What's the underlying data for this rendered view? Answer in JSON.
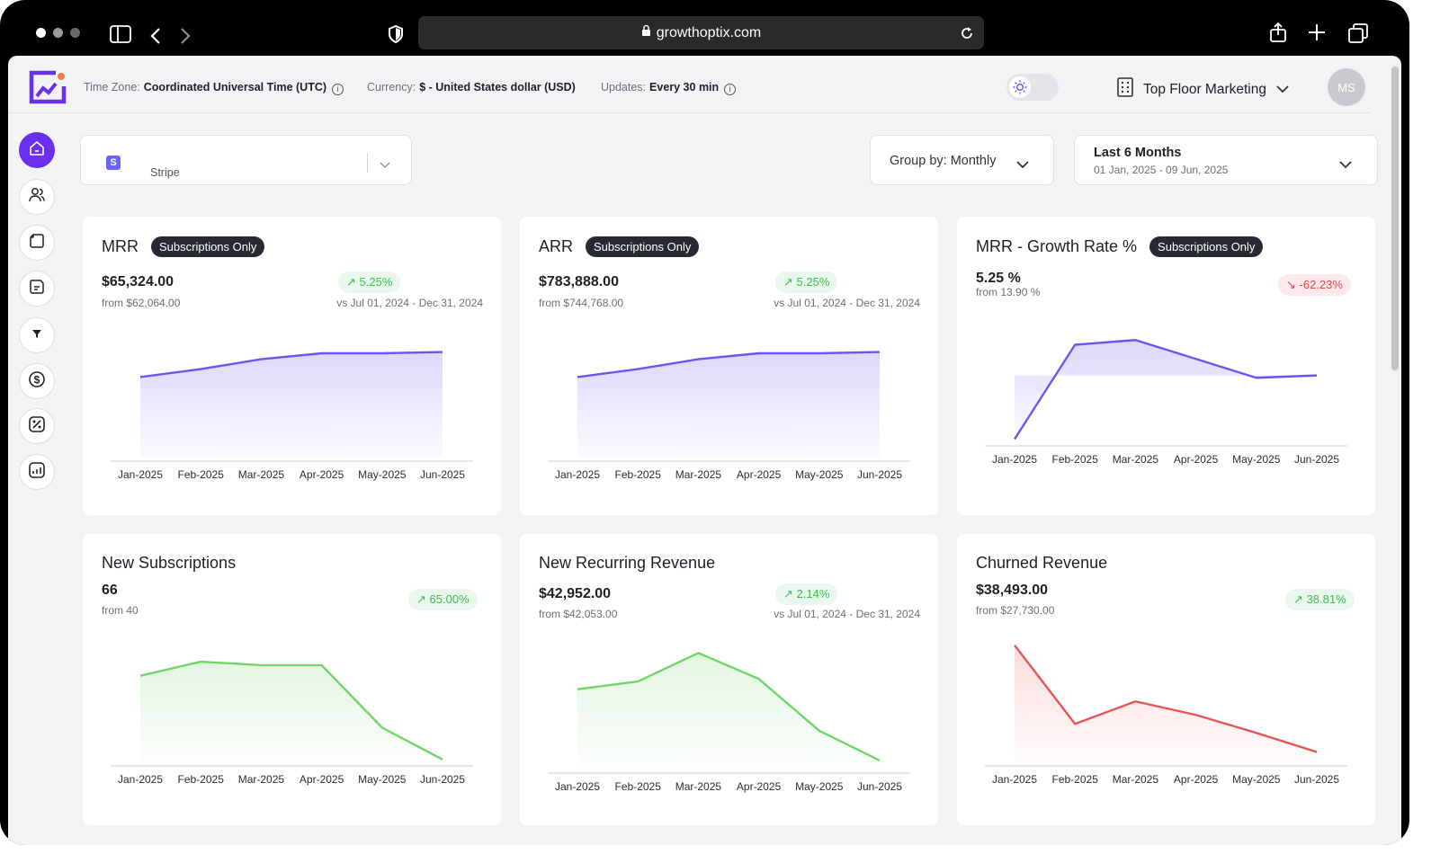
{
  "browser": {
    "url": "growthoptix.com",
    "icons": [
      "sidebar-icon",
      "back-icon",
      "forward-icon",
      "shield-icon",
      "lock-icon",
      "reload-icon",
      "share-icon",
      "plus-icon",
      "tabs-icon"
    ],
    "traffic_colors": [
      "#ffffff",
      "#9a9a9a",
      "#6a6a6a"
    ]
  },
  "topbar": {
    "timezone_label": "Time Zone:",
    "timezone_value": "Coordinated Universal Time (UTC)",
    "currency_label": "Currency:",
    "currency_value": "$ - United States dollar (USD)",
    "updates_label": "Updates:",
    "updates_value": "Every 30 min",
    "company": "Top Floor Marketing",
    "avatar_initials": "MS"
  },
  "sidebar": {
    "items": [
      "home-icon",
      "users-icon",
      "document-icon",
      "report-icon",
      "funnel-icon",
      "dollar-icon",
      "discount-icon",
      "analytics-icon"
    ],
    "active_index": 0
  },
  "filters": {
    "source_icon_letter": "S",
    "source": "Stripe",
    "group_by": "Group by: Monthly",
    "date_range_title": "Last 6 Months",
    "date_range_sub": "01 Jan, 2025 - 09 Jun, 2025"
  },
  "colors": {
    "accent": "#6b2ff0",
    "mrr_line": "#6d55f2",
    "green_line": "#6fd76a",
    "red_line": "#e85454"
  },
  "cards": [
    {
      "title": "MRR",
      "pill": "Subscriptions Only",
      "value": "$65,324.00",
      "from": "from $62,064.00",
      "badge": "5.25%",
      "trend": "up",
      "vs": "vs Jul 01, 2024 - Dec 31, 2024"
    },
    {
      "title": "ARR",
      "pill": "Subscriptions Only",
      "value": "$783,888.00",
      "from": "from $744,768.00",
      "badge": "5.25%",
      "trend": "up",
      "vs": "vs Jul 01, 2024 - Dec 31, 2024"
    },
    {
      "title": "MRR - Growth Rate %",
      "pill": "Subscriptions Only",
      "value": "5.25 %",
      "from": "from 13.90 %",
      "badge": "-62.23%",
      "trend": "down",
      "vs": ""
    },
    {
      "title": "New Subscriptions",
      "pill": "",
      "value": "66",
      "from": "from 40",
      "badge": "65.00%",
      "trend": "up",
      "vs": ""
    },
    {
      "title": "New Recurring Revenue",
      "pill": "",
      "value": "$42,952.00",
      "from": "from $42,053.00",
      "badge": "2.14%",
      "trend": "up",
      "vs": "vs Jul 01, 2024 - Dec 31, 2024"
    },
    {
      "title": "Churned Revenue",
      "pill": "",
      "value": "$38,493.00",
      "from": "from $27,730.00",
      "badge": "38.81%",
      "trend": "up",
      "vs": ""
    }
  ],
  "chart_data": [
    {
      "type": "area",
      "title": "MRR",
      "categories": [
        "Jan-2025",
        "Feb-2025",
        "Mar-2025",
        "Apr-2025",
        "May-2025",
        "Jun-2025"
      ],
      "values": [
        59000,
        61000,
        63500,
        65000,
        65000,
        65324
      ],
      "ylim": [
        40000,
        70000
      ],
      "color": "#6d55f2",
      "fill": "#dcd8fb"
    },
    {
      "type": "area",
      "title": "ARR",
      "categories": [
        "Jan-2025",
        "Feb-2025",
        "Mar-2025",
        "Apr-2025",
        "May-2025",
        "Jun-2025"
      ],
      "values": [
        708000,
        732000,
        762000,
        780000,
        780000,
        783888
      ],
      "ylim": [
        480000,
        840000
      ],
      "color": "#6d55f2",
      "fill": "#dcd8fb"
    },
    {
      "type": "area",
      "title": "MRR - Growth Rate %",
      "categories": [
        "Jan-2025",
        "Feb-2025",
        "Mar-2025",
        "Apr-2025",
        "May-2025",
        "Jun-2025"
      ],
      "values": [
        -15,
        15,
        16.5,
        10.5,
        4.5,
        5.25
      ],
      "ylim": [
        -20,
        20
      ],
      "baseline": 5.25,
      "color": "#6d55f2",
      "fill": "#dcd8fb"
    },
    {
      "type": "area",
      "title": "New Subscriptions",
      "categories": [
        "Jan-2025",
        "Feb-2025",
        "Mar-2025",
        "Apr-2025",
        "May-2025",
        "Jun-2025"
      ],
      "values": [
        75,
        87,
        84,
        84,
        31,
        4
      ],
      "ylim": [
        0,
        100
      ],
      "color": "#6fd76a",
      "fill": "#e3f5e1"
    },
    {
      "type": "area",
      "title": "New Recurring Revenue",
      "categories": [
        "Jan-2025",
        "Feb-2025",
        "Mar-2025",
        "Apr-2025",
        "May-2025",
        "Jun-2025"
      ],
      "values": [
        62000,
        68000,
        90000,
        70000,
        30000,
        7000
      ],
      "ylim": [
        0,
        100000
      ],
      "color": "#6fd76a",
      "fill": "#e3f5e1"
    },
    {
      "type": "area",
      "title": "Churned Revenue",
      "categories": [
        "Jan-2025",
        "Feb-2025",
        "Mar-2025",
        "Apr-2025",
        "May-2025",
        "Jun-2025"
      ],
      "values": [
        105000,
        35000,
        55000,
        43000,
        27000,
        10000
      ],
      "ylim": [
        0,
        120000
      ],
      "color": "#e85454",
      "fill": "#f9dcdc"
    }
  ]
}
